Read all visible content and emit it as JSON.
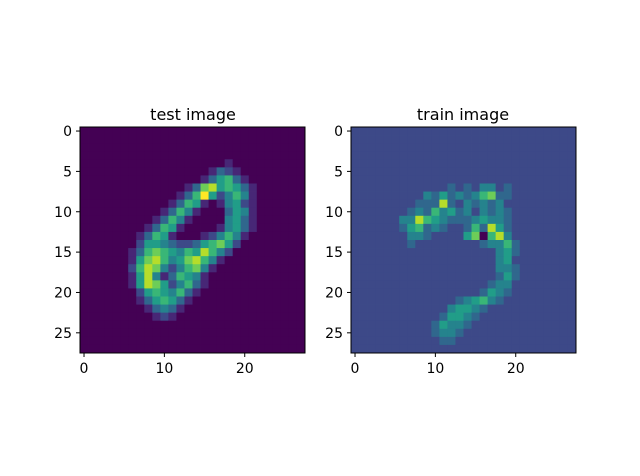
{
  "chart_data": [
    {
      "type": "heatmap",
      "title": "test image",
      "colormap": "viridis",
      "grid": false,
      "xlim": [
        -0.5,
        27.5
      ],
      "ylim": [
        27.5,
        -0.5
      ],
      "xticks": [
        "0",
        "10",
        "20"
      ],
      "yticks": [
        "0",
        "5",
        "10",
        "15",
        "20",
        "25"
      ],
      "shape": [
        28,
        28
      ],
      "rows": [
        "0000000000000000000000000000",
        "0000000000000000000000000000",
        "0000000000000000000000000000",
        "0000000000000000000000000000",
        "0000000000000000001000000000",
        "0000000000000000132100000000",
        "0000000000000001356310000000",
        "0000000000000137856531000000",
        "0000000000001369524641000000",
        "0000000000013651014521000000",
        "0000000000136410003541000000",
        "0000000001364100004531000000",
        "0000000013651000014531000000",
        "0000000136510001246410000000",
        "0000000255432235675200000000",
        "0000001367654658642000000000",
        "0000001578645786410000000000",
        "0000002687424674100000000000",
        "0000001584136541000000000000",
        "0000001587524631000000000000",
        "0000000256546310000000000000",
        "0000000135653100000000000000",
        "0000000013431000000000000000",
        "0000000001210000000000000000",
        "0000000000000000000000000000",
        "0000000000000000000000000000",
        "0000000000000000000000000000",
        "0000000000000000000000000000"
      ]
    },
    {
      "type": "heatmap",
      "title": "train image",
      "colormap": "viridis",
      "grid": false,
      "xlim": [
        -0.5,
        27.5
      ],
      "ylim": [
        27.5,
        -0.5
      ],
      "xticks": [
        "0",
        "10",
        "20"
      ],
      "yticks": [
        "0",
        "5",
        "10",
        "15",
        "20",
        "25"
      ],
      "shape": [
        28,
        28
      ],
      "rows": [
        "2222222222222222222222222222",
        "2222222222222222222222222222",
        "2222222222222222222222222222",
        "2222222222222222222222222222",
        "2222222222222222222222222222",
        "2222222222222222222222222222",
        "2222222222222222222222222222",
        "2222222222223232442322222222",
        "2222222224353434673322222222",
        "2222222233383243434222222222",
        "2222222343645342434322222222",
        "2222224486543334544322222222",
        "2222223563432236385322222222",
        "2222222443222257068422222222",
        "2222222322222222344632222222",
        "2222222222222222224532222222",
        "2222222222222222224522222222",
        "2222222222222222224432222222",
        "2222222222222222223532222222",
        "2222222222222222234422222222",
        "2222222222222222354322222222",
        "2222222222222345643222222222",
        "2222222222224554322222222222",
        "2222222222235543222222222222",
        "2222222222354432222222222222",
        "2222222222344322222222222222",
        "2222222222233222222222222222",
        "2222222222222222222222222222"
      ]
    }
  ]
}
